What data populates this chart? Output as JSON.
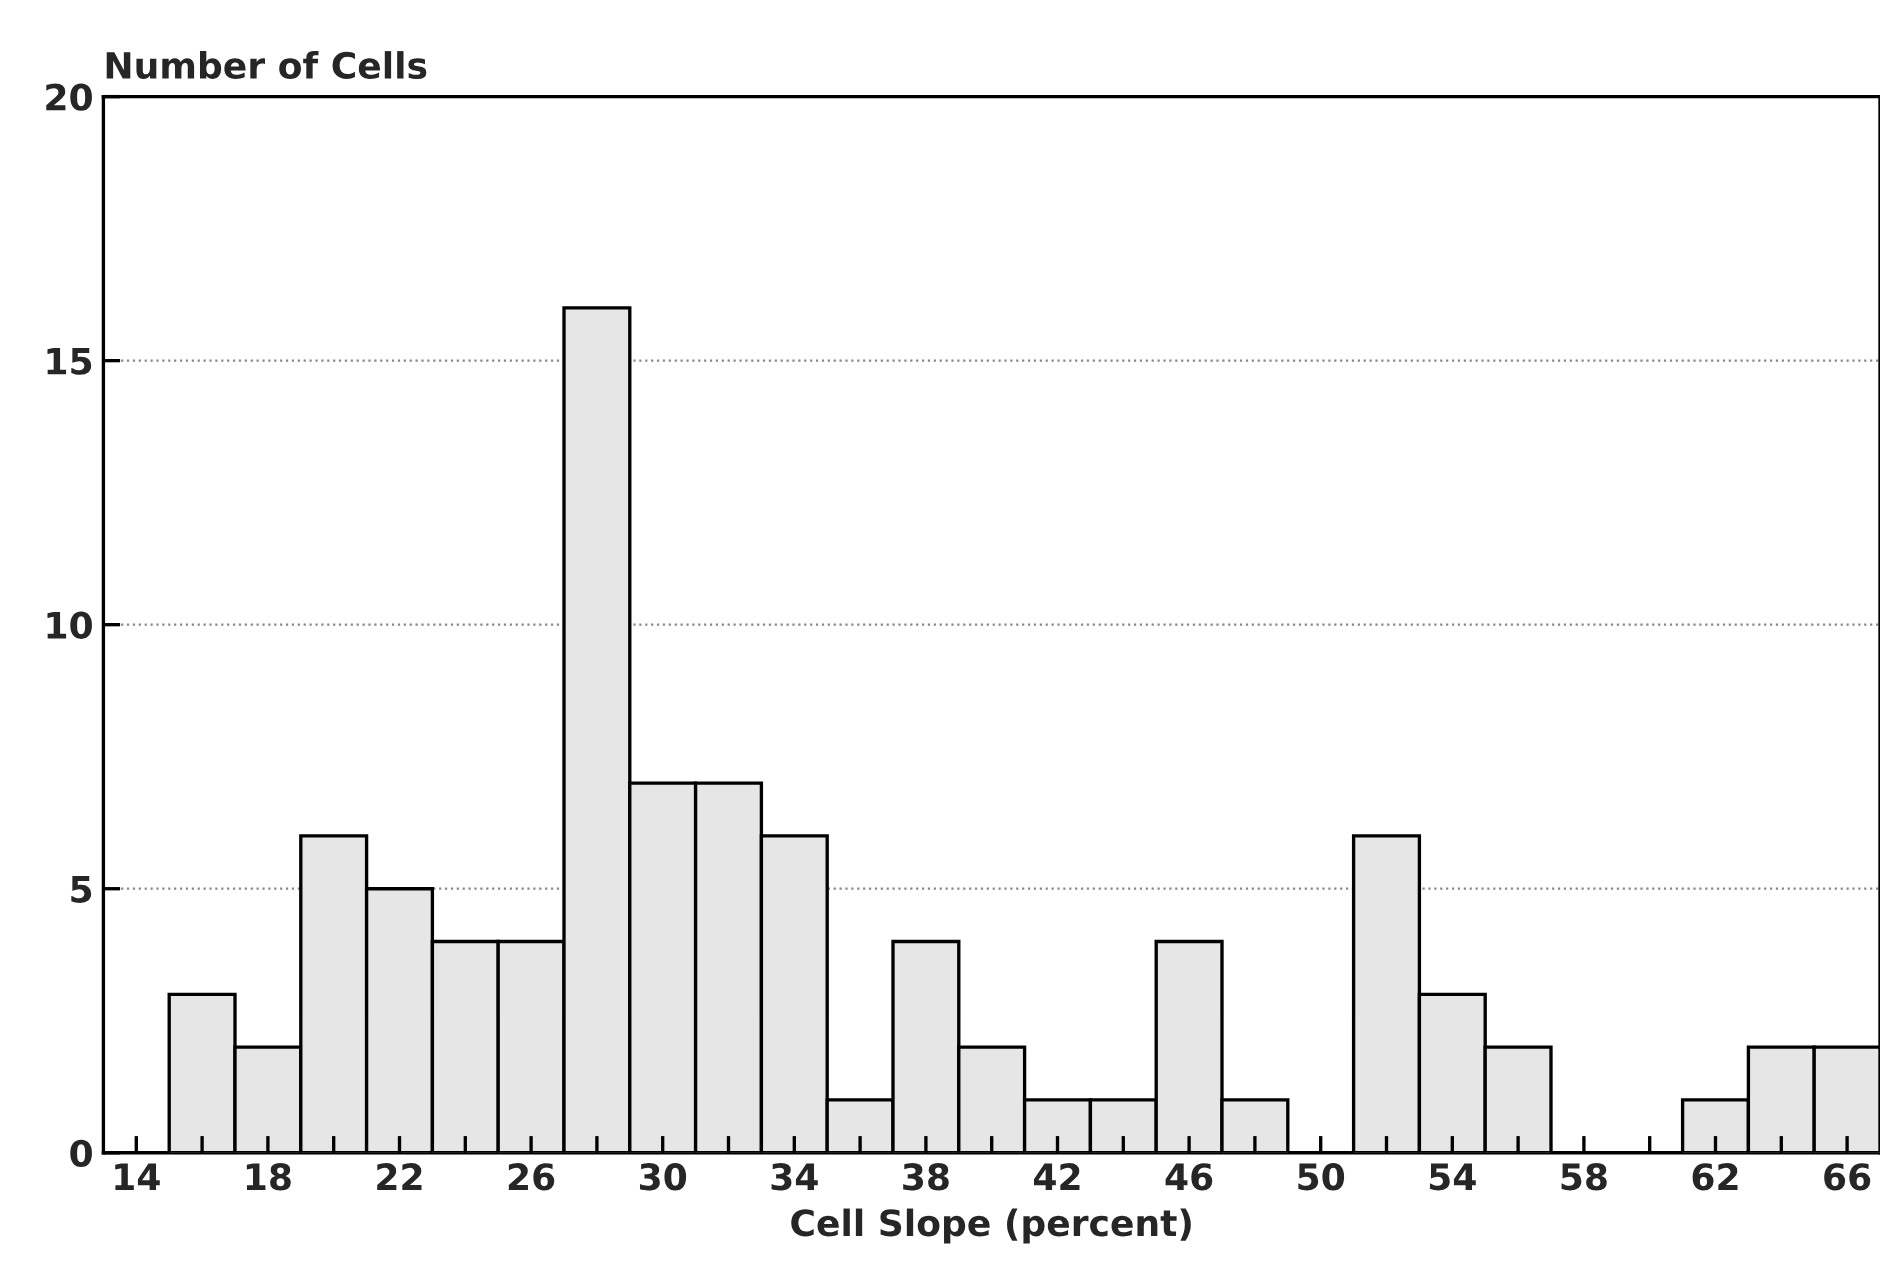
{
  "chart_data": {
    "type": "histogram",
    "xlabel": "Cell Slope (percent)",
    "ylabel": "Number of Cells",
    "bins": [
      15,
      17,
      19,
      21,
      23,
      25,
      27,
      29,
      31,
      33,
      35,
      37,
      39,
      41,
      43,
      45,
      47,
      49,
      51,
      53,
      55,
      57,
      59,
      61,
      63,
      65,
      67
    ],
    "values": [
      3,
      2,
      6,
      5,
      4,
      4,
      16,
      7,
      7,
      6,
      1,
      4,
      2,
      1,
      1,
      4,
      1,
      0,
      6,
      3,
      2,
      0,
      0,
      1,
      2,
      2
    ],
    "color": "#e6e6e6",
    "xlim": [
      13,
      67
    ],
    "ylim": [
      0,
      20
    ],
    "xticks": [
      14,
      {
        "value": 16,
        "label": null
      },
      18,
      {
        "value": 20,
        "label": null
      },
      22,
      {
        "value": 24,
        "label": null
      },
      26,
      {
        "value": 28,
        "label": null
      },
      30,
      {
        "value": 32,
        "label": null
      },
      34,
      {
        "value": 36,
        "label": null
      },
      38,
      {
        "value": 40,
        "label": null
      },
      42,
      {
        "value": 44,
        "label": null
      },
      46,
      {
        "value": 48,
        "label": null
      },
      50,
      {
        "value": 52,
        "label": null
      },
      54,
      {
        "value": 56,
        "label": null
      },
      58,
      {
        "value": 60,
        "label": null
      },
      62,
      {
        "value": 64,
        "label": null
      },
      66
    ],
    "yticks": [
      0,
      5,
      10,
      15,
      20
    ],
    "grid": "y"
  }
}
